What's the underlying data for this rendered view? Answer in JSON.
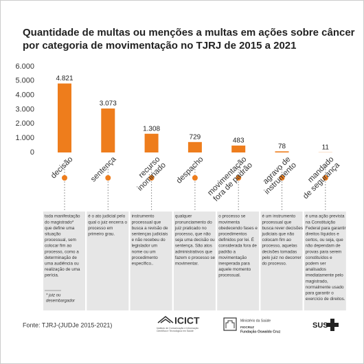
{
  "chart_data": {
    "type": "bar",
    "title": "Quantidade de multas ou menções a multas em ações sobre câncer\npor categoria de movimentação no TJRJ de 2015 a 2021",
    "categories": [
      "decisão",
      "sentença",
      "recurso\ninominado",
      "despacho",
      "movimentação\nfora de padrão",
      "agravo de\ninstrumento",
      "mandado\nde segurança"
    ],
    "values": [
      4821,
      3073,
      1308,
      729,
      483,
      78,
      11
    ],
    "value_labels": [
      "4.821",
      "3.073",
      "1.308",
      "729",
      "483",
      "78",
      "11"
    ],
    "color": "#ee7d1c",
    "ylim": [
      0,
      6000
    ],
    "yticks": [
      0,
      {
        "value": 1000,
        "label": "1.000"
      },
      {
        "value": 2000,
        "label": "2.000"
      },
      {
        "value": 3000,
        "label": "3.000"
      },
      {
        "value": 4000,
        "label": "4.000"
      },
      {
        "value": 5000,
        "label": "5.000"
      },
      {
        "value": 6000,
        "label": "6.000"
      }
    ],
    "grid": false,
    "descriptions": [
      [
        "toda manifestação",
        "do magistrado*",
        "que define uma",
        "situação",
        "processual, sem",
        "colocar fim ao",
        "processo, como a",
        "determinação de",
        "uma audiência ou",
        "realização de uma",
        "perícia."
      ],
      [
        "é o ato judicial pelo",
        "qual o juiz encerra o",
        "processo em",
        "primeiro grau."
      ],
      [
        "instrumento",
        "processual que",
        "busca a revisão de",
        "sentenças judiciais",
        "e não recebeu do",
        "legislador um",
        "nome ou um",
        "procedimento",
        "específico.."
      ],
      [
        "qualquer",
        "pronunciamento do",
        "juiz praticado no",
        "processo, que não",
        "seja uma decisão ou",
        "sentença. São atos",
        "administrativos que",
        "fazem o processo se",
        "movimentar."
      ],
      [
        "o processo se",
        "movimenta",
        "obedecendo fases e",
        "procedimentos",
        "definidos por lei. É",
        "considerada fora de",
        "padrão a",
        "movimentação",
        "inesperada para",
        "aquele momento",
        "processual."
      ],
      [
        "é um instrumento",
        "processual que",
        "busca rever decisões",
        "judiciais que não",
        "colocam fim ao",
        "processo, aquelas",
        "decisões tomadas",
        "pelo juiz no decorrer",
        "do processo."
      ],
      [
        "é uma ação prevista",
        "na Constituição",
        "Federal para garantir",
        "direitos líquidos e",
        "certos, ou seja, que",
        "não dependam de",
        "provas para serem",
        "constituídos e",
        "podem ser",
        "analisados",
        "imediatamente pelo",
        "magistrado,",
        "normalmente usado",
        "para garantir o",
        "exercício de direitos."
      ]
    ],
    "footnote": [
      "* juiz ou",
      "desembargador"
    ]
  },
  "footer": {
    "source": "Fonte: TJRJ-(JUDJe 2015-2021)",
    "icict": "ICICT",
    "icict_sub": [
      "Instituto de Comunicação e Informação",
      "Científica e Tecnológica em Saúde"
    ],
    "ministerio": "Ministério da Saúde",
    "fiocruz": "FIOCRUZ",
    "fiocruz_sub": "Fundação Oswaldo Cruz",
    "sus": "SUS"
  }
}
